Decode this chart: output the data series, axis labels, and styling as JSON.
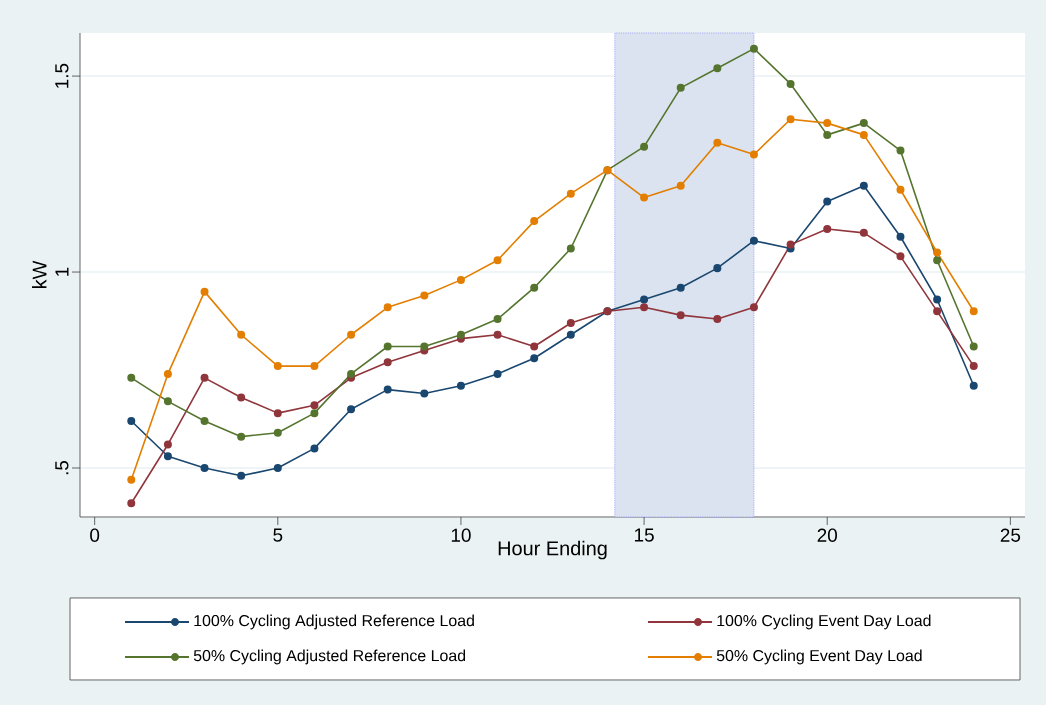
{
  "chart_data": {
    "type": "line",
    "xlabel": "Hour Ending",
    "ylabel": "kW",
    "x": [
      1,
      2,
      3,
      4,
      5,
      6,
      7,
      8,
      9,
      10,
      11,
      12,
      13,
      14,
      15,
      16,
      17,
      18,
      19,
      20,
      21,
      22,
      23,
      24
    ],
    "series": [
      {
        "name": "100% Cycling Adjusted Reference Load",
        "color": "#1a476f",
        "values": [
          0.62,
          0.53,
          0.5,
          0.48,
          0.5,
          0.55,
          0.65,
          0.7,
          0.69,
          0.71,
          0.74,
          0.78,
          0.84,
          0.9,
          0.93,
          0.96,
          1.01,
          1.08,
          1.06,
          1.18,
          1.22,
          1.09,
          0.93,
          0.71
        ]
      },
      {
        "name": "100% Cycling Event Day Load",
        "color": "#90353b",
        "values": [
          0.41,
          0.56,
          0.73,
          0.68,
          0.64,
          0.66,
          0.73,
          0.77,
          0.8,
          0.83,
          0.84,
          0.81,
          0.87,
          0.9,
          0.91,
          0.89,
          0.88,
          0.91,
          1.07,
          1.11,
          1.1,
          1.04,
          0.9,
          0.76
        ]
      },
      {
        "name": "50% Cycling Adjusted Reference Load",
        "color": "#55752f",
        "values": [
          0.73,
          0.67,
          0.62,
          0.58,
          0.59,
          0.64,
          0.74,
          0.81,
          0.81,
          0.84,
          0.88,
          0.96,
          1.06,
          1.26,
          1.32,
          1.47,
          1.52,
          1.57,
          1.48,
          1.35,
          1.38,
          1.31,
          1.03,
          0.81
        ]
      },
      {
        "name": "50% Cycling Event Day Load",
        "color": "#e37e00",
        "values": [
          0.47,
          0.74,
          0.95,
          0.84,
          0.76,
          0.76,
          0.84,
          0.91,
          0.94,
          0.98,
          1.03,
          1.13,
          1.2,
          1.26,
          1.19,
          1.22,
          1.33,
          1.3,
          1.39,
          1.38,
          1.35,
          1.21,
          1.05,
          0.9
        ]
      }
    ],
    "xlim": [
      -0.4,
      25.4
    ],
    "ylim": [
      0.375,
      1.61
    ],
    "xticks": [
      0,
      5,
      10,
      15,
      20,
      25
    ],
    "yticks": [
      {
        "value": 0.5,
        "label": ".5"
      },
      1,
      1.5
    ],
    "bands": [
      {
        "axis": "x",
        "from": 14.2,
        "to": 18,
        "color": "#dae3ef"
      }
    ],
    "grid": "y",
    "legend": "bottom",
    "marker": "circle",
    "line_style": "solid"
  }
}
